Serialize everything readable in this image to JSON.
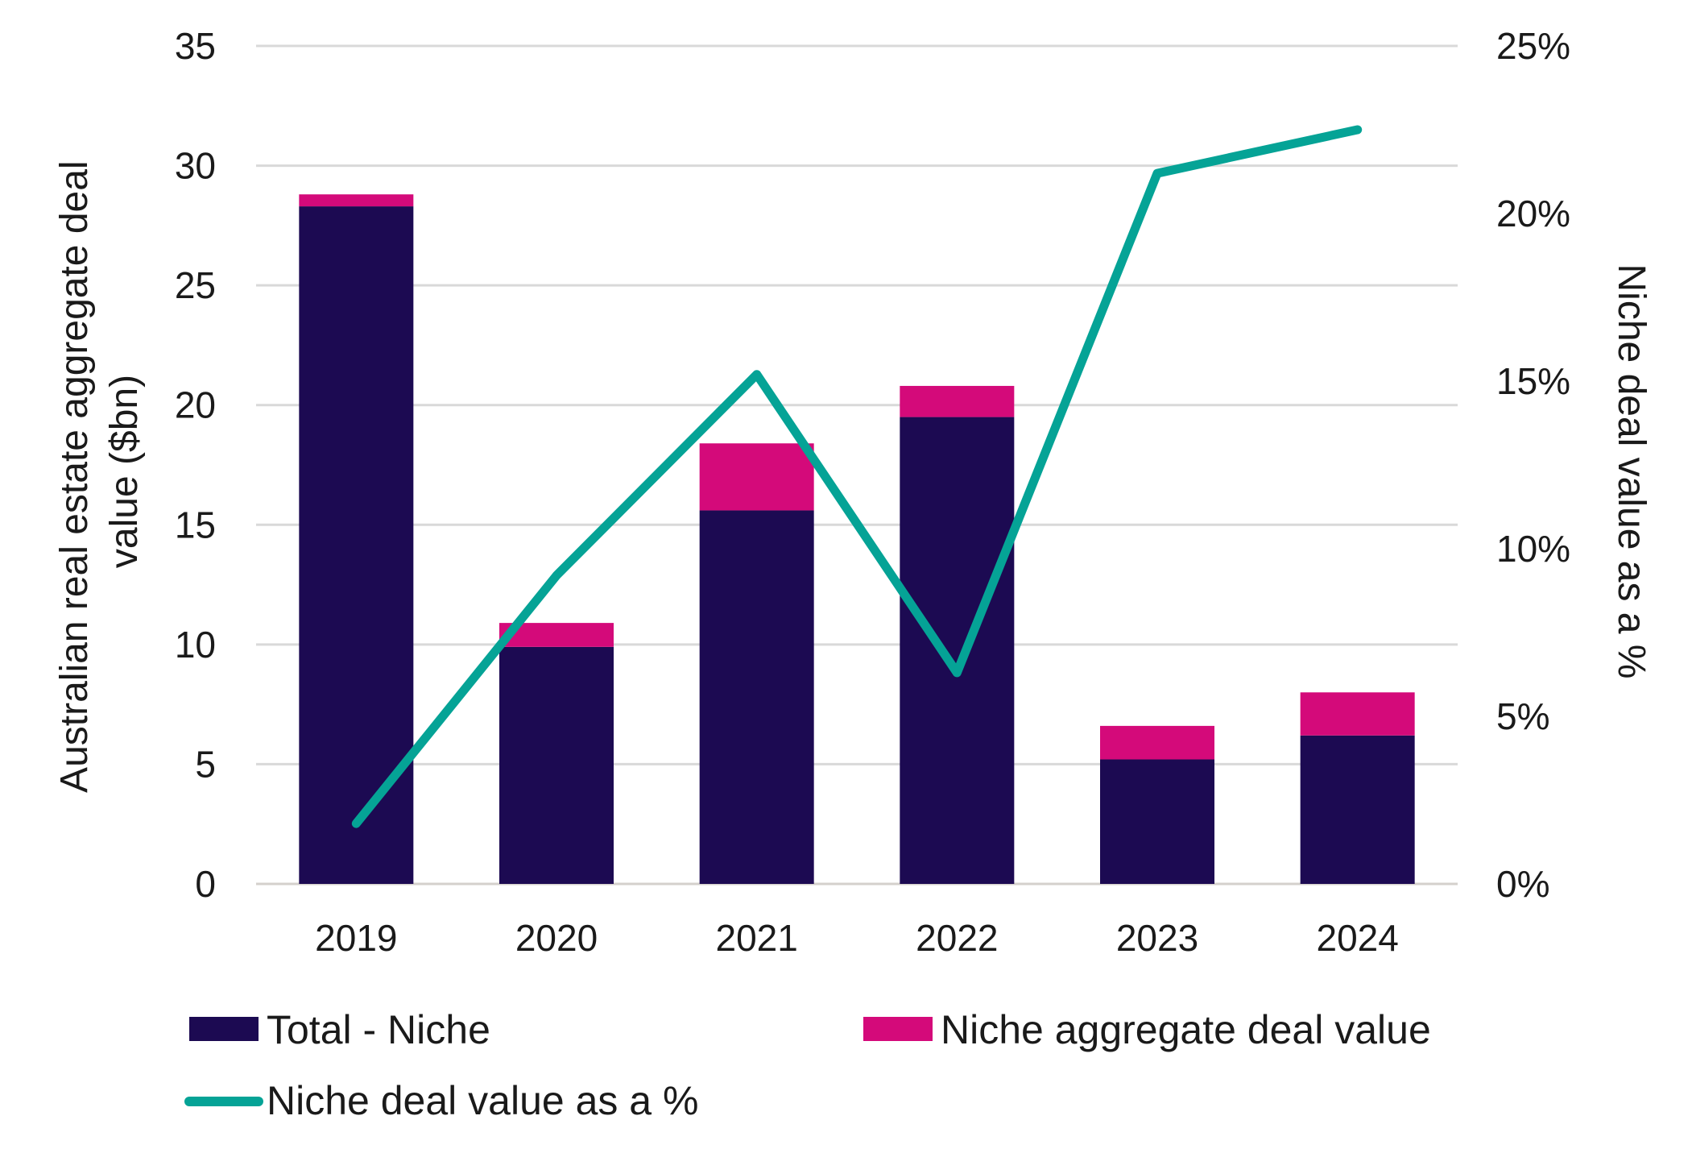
{
  "chart_data": {
    "type": "bar",
    "stacked": true,
    "categories": [
      "2019",
      "2020",
      "2021",
      "2022",
      "2023",
      "2024"
    ],
    "series": [
      {
        "name": "Total - Niche",
        "kind": "bar",
        "axis": "left",
        "color": "#1c0a52",
        "values": [
          28.3,
          9.9,
          15.6,
          19.5,
          5.2,
          6.2
        ]
      },
      {
        "name": "Niche aggregate deal value",
        "kind": "bar",
        "axis": "left",
        "color": "#d40a7a",
        "values": [
          0.5,
          1.0,
          2.8,
          1.3,
          1.4,
          1.8
        ]
      },
      {
        "name": "Niche deal value as a %",
        "kind": "line",
        "axis": "right",
        "color": "#05a396",
        "values": [
          1.8,
          9.2,
          15.2,
          6.3,
          21.2,
          22.5
        ]
      }
    ],
    "left_axis": {
      "title_lines": [
        "Australian real estate aggregate deal",
        "value ($bn)"
      ],
      "ylim": [
        0,
        35
      ],
      "ticks": [
        0,
        5,
        10,
        15,
        20,
        25,
        30,
        35
      ],
      "tick_labels": [
        "0",
        "5",
        "10",
        "15",
        "20",
        "25",
        "30",
        "35"
      ]
    },
    "right_axis": {
      "title": "Niche deal value as a %",
      "ylim": [
        0,
        25
      ],
      "ticks": [
        0,
        5,
        10,
        15,
        20,
        25
      ],
      "tick_labels": [
        "0%",
        "5%",
        "10%",
        "15%",
        "20%",
        "25%"
      ]
    },
    "grid": true,
    "legend": {
      "position": "bottom",
      "entries": [
        "Total - Niche",
        "Niche aggregate deal value",
        "Niche deal value as a %"
      ]
    }
  }
}
